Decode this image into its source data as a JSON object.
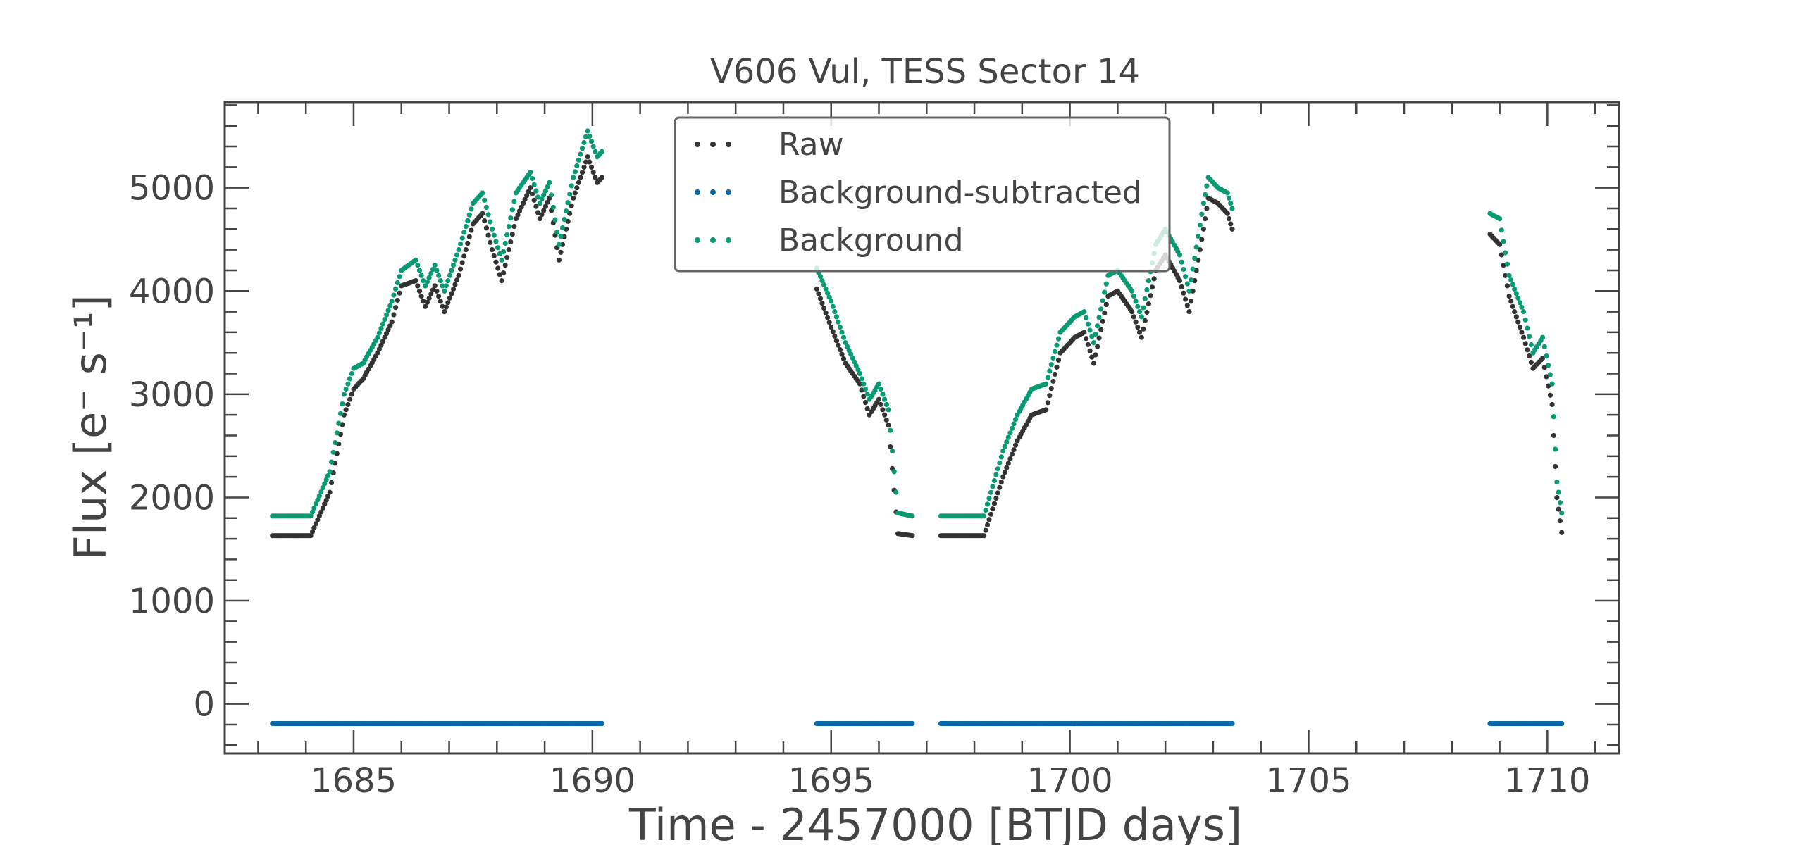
{
  "chart_data": {
    "type": "scatter",
    "title": "V606 Vul, TESS Sector 14",
    "xlabel": "Time - 2457000 [BTJD days]",
    "ylabel": "Flux [e⁻ s⁻¹]",
    "xlim": [
      1682.3,
      1711.5
    ],
    "ylim": [
      -480,
      5830
    ],
    "xticks": [
      1685,
      1690,
      1695,
      1700,
      1705,
      1710
    ],
    "yticks": [
      0,
      1000,
      2000,
      3000,
      4000,
      5000
    ],
    "grid": false,
    "legend_position": "top-center",
    "colors": {
      "Raw": "#333333",
      "Background-subtracted": "#0868ac",
      "Background": "#089b73"
    },
    "series": [
      {
        "name": "Raw",
        "segments": [
          [
            [
              1683.3,
              1630
            ],
            [
              1684.1,
              1630
            ],
            [
              1684.5,
              2050
            ],
            [
              1684.8,
              2800
            ],
            [
              1685.0,
              3050
            ],
            [
              1685.2,
              3150
            ],
            [
              1685.5,
              3400
            ],
            [
              1685.8,
              3700
            ],
            [
              1686.0,
              4050
            ],
            [
              1686.3,
              4100
            ],
            [
              1686.5,
              3850
            ],
            [
              1686.7,
              4050
            ],
            [
              1686.9,
              3800
            ],
            [
              1687.2,
              4150
            ],
            [
              1687.5,
              4650
            ],
            [
              1687.7,
              4750
            ],
            [
              1687.9,
              4400
            ],
            [
              1688.1,
              4100
            ],
            [
              1688.4,
              4700
            ],
            [
              1688.7,
              5000
            ],
            [
              1688.9,
              4700
            ],
            [
              1689.1,
              4900
            ],
            [
              1689.3,
              4300
            ],
            [
              1689.6,
              4900
            ],
            [
              1689.9,
              5300
            ],
            [
              1690.1,
              5050
            ],
            [
              1690.2,
              5100
            ]
          ],
          [
            [
              1694.7,
              4020
            ],
            [
              1695.0,
              3650
            ],
            [
              1695.3,
              3300
            ],
            [
              1695.6,
              3100
            ],
            [
              1695.8,
              2800
            ],
            [
              1696.0,
              2950
            ],
            [
              1696.2,
              2700
            ],
            [
              1696.4,
              1650
            ],
            [
              1696.7,
              1630
            ]
          ],
          [
            [
              1697.3,
              1630
            ],
            [
              1698.2,
              1630
            ],
            [
              1698.6,
              2200
            ],
            [
              1698.9,
              2550
            ],
            [
              1699.2,
              2800
            ],
            [
              1699.5,
              2850
            ],
            [
              1699.8,
              3400
            ],
            [
              1700.1,
              3550
            ],
            [
              1700.3,
              3600
            ],
            [
              1700.5,
              3300
            ],
            [
              1700.8,
              3950
            ],
            [
              1701.0,
              4000
            ],
            [
              1701.3,
              3800
            ],
            [
              1701.5,
              3550
            ],
            [
              1701.8,
              4200
            ],
            [
              1702.0,
              4350
            ],
            [
              1702.3,
              4100
            ],
            [
              1702.5,
              3800
            ],
            [
              1702.8,
              4600
            ],
            [
              1702.9,
              4900
            ],
            [
              1703.1,
              4850
            ],
            [
              1703.3,
              4750
            ],
            [
              1703.4,
              4600
            ]
          ],
          [
            [
              1708.8,
              4550
            ],
            [
              1709.0,
              4450
            ],
            [
              1709.2,
              3950
            ],
            [
              1709.5,
              3550
            ],
            [
              1709.7,
              3250
            ],
            [
              1709.9,
              3350
            ],
            [
              1710.1,
              2900
            ],
            [
              1710.2,
              2000
            ],
            [
              1710.3,
              1660
            ]
          ]
        ]
      },
      {
        "name": "Background-subtracted",
        "segments": [
          [
            [
              1683.3,
              -190
            ],
            [
              1690.2,
              -190
            ]
          ],
          [
            [
              1694.7,
              -190
            ],
            [
              1696.7,
              -190
            ]
          ],
          [
            [
              1697.3,
              -190
            ],
            [
              1703.4,
              -190
            ]
          ],
          [
            [
              1708.8,
              -190
            ],
            [
              1710.3,
              -190
            ]
          ]
        ]
      },
      {
        "name": "Background",
        "segments": [
          [
            [
              1683.3,
              1820
            ],
            [
              1684.1,
              1820
            ],
            [
              1684.5,
              2250
            ],
            [
              1684.8,
              3000
            ],
            [
              1685.0,
              3250
            ],
            [
              1685.2,
              3300
            ],
            [
              1685.5,
              3550
            ],
            [
              1685.8,
              3900
            ],
            [
              1686.0,
              4200
            ],
            [
              1686.3,
              4300
            ],
            [
              1686.5,
              4050
            ],
            [
              1686.7,
              4250
            ],
            [
              1686.9,
              4000
            ],
            [
              1687.2,
              4400
            ],
            [
              1687.5,
              4850
            ],
            [
              1687.7,
              4950
            ],
            [
              1687.9,
              4600
            ],
            [
              1688.1,
              4300
            ],
            [
              1688.4,
              4950
            ],
            [
              1688.7,
              5150
            ],
            [
              1688.9,
              4850
            ],
            [
              1689.1,
              5050
            ],
            [
              1689.3,
              4450
            ],
            [
              1689.6,
              5100
            ],
            [
              1689.9,
              5550
            ],
            [
              1690.1,
              5300
            ],
            [
              1690.2,
              5350
            ]
          ],
          [
            [
              1694.7,
              4220
            ],
            [
              1695.0,
              3900
            ],
            [
              1695.3,
              3500
            ],
            [
              1695.6,
              3200
            ],
            [
              1695.8,
              2950
            ],
            [
              1696.0,
              3100
            ],
            [
              1696.2,
              2850
            ],
            [
              1696.4,
              1850
            ],
            [
              1696.7,
              1820
            ]
          ],
          [
            [
              1697.3,
              1820
            ],
            [
              1698.2,
              1820
            ],
            [
              1698.6,
              2450
            ],
            [
              1698.9,
              2800
            ],
            [
              1699.2,
              3050
            ],
            [
              1699.5,
              3100
            ],
            [
              1699.8,
              3600
            ],
            [
              1700.1,
              3750
            ],
            [
              1700.3,
              3800
            ],
            [
              1700.5,
              3500
            ],
            [
              1700.8,
              4150
            ],
            [
              1701.0,
              4200
            ],
            [
              1701.3,
              4000
            ],
            [
              1701.5,
              3750
            ],
            [
              1701.8,
              4450
            ],
            [
              1702.0,
              4600
            ],
            [
              1702.3,
              4350
            ],
            [
              1702.5,
              4000
            ],
            [
              1702.8,
              4850
            ],
            [
              1702.9,
              5100
            ],
            [
              1703.1,
              5000
            ],
            [
              1703.3,
              4950
            ],
            [
              1703.4,
              4800
            ]
          ],
          [
            [
              1708.8,
              4750
            ],
            [
              1709.0,
              4700
            ],
            [
              1709.2,
              4150
            ],
            [
              1709.5,
              3800
            ],
            [
              1709.7,
              3400
            ],
            [
              1709.9,
              3550
            ],
            [
              1710.1,
              3100
            ],
            [
              1710.2,
              2150
            ],
            [
              1710.3,
              1850
            ]
          ]
        ]
      }
    ]
  }
}
